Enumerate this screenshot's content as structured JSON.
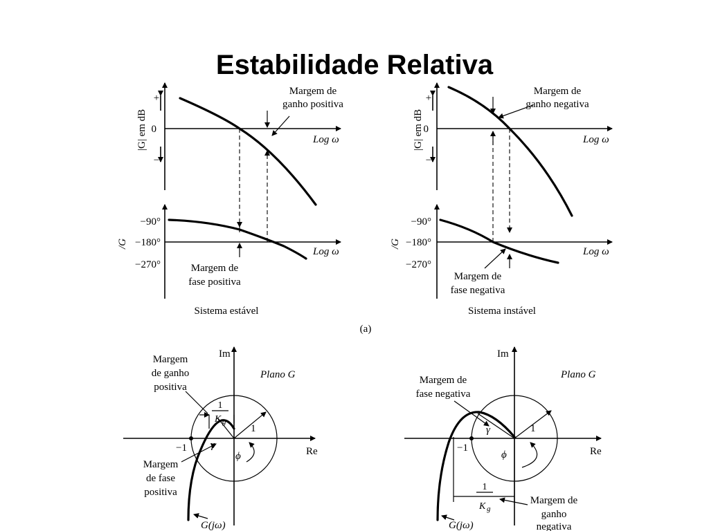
{
  "title": "Estabilidade Relativa",
  "bode": {
    "stable": {
      "mag_label": "|G| em dB",
      "plus": "+",
      "zero": "0",
      "minus": "−",
      "log_label": "Log ω",
      "gain_margin": [
        "Margem de",
        "ganho positiva"
      ],
      "phase_label": "/G",
      "phase_ticks": [
        "−90°",
        "−180°",
        "−270°"
      ],
      "phase_margin": [
        "Margem de",
        "fase positiva"
      ],
      "caption": "Sistema estável"
    },
    "unstable": {
      "mag_label": "|G| em dB",
      "plus": "+",
      "zero": "0",
      "minus": "−",
      "log_label": "Log ω",
      "gain_margin": [
        "Margem de",
        "ganho negativa"
      ],
      "phase_label": "/G",
      "phase_ticks": [
        "−90°",
        "−180°",
        "−270°"
      ],
      "phase_margin": [
        "Margem de",
        "fase negativa"
      ],
      "caption": "Sistema instável"
    },
    "figure_label": "(a)"
  },
  "nyquist": {
    "stable": {
      "im": "Im",
      "re": "Re",
      "plane": "Plano G",
      "minus_one": "−1",
      "one": "1",
      "gamma": "γ",
      "phi": "ϕ",
      "kg_num": "1",
      "kg_den": "K",
      "kg_sub": "g",
      "gain_margin": [
        "Margem",
        "de ganho",
        "positiva"
      ],
      "phase_margin": [
        "Margem",
        "de fase",
        "positiva"
      ],
      "g_label": "G(jω)"
    },
    "unstable": {
      "im": "Im",
      "re": "Re",
      "plane": "Plano G",
      "minus_one": "−1",
      "one": "1",
      "gamma": "γ",
      "phi": "ϕ",
      "kg_num": "1",
      "kg_den": "K",
      "kg_sub": "g",
      "phase_margin": [
        "Margem de",
        "fase negativa"
      ],
      "gain_margin": [
        "Margem de",
        "ganho",
        "negativa"
      ],
      "g_label": "G(jω)"
    }
  }
}
